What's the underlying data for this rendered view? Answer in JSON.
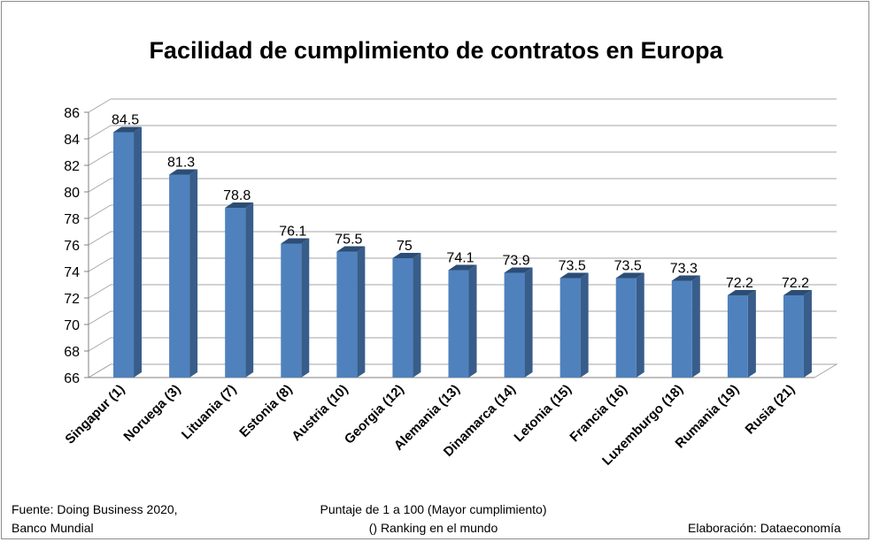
{
  "chart_data": {
    "type": "bar",
    "title": "Facilidad de cumplimiento de contratos en Europa",
    "categories": [
      "Singapur (1)",
      "Noruega (3)",
      "Lituania (7)",
      "Estonia (8)",
      "Austria (10)",
      "Georgia (12)",
      "Alemania (13)",
      "Dinamarca (14)",
      "Letonia (15)",
      "Francia (16)",
      "Luxemburgo (18)",
      "Rumania (19)",
      "Rusia (21)"
    ],
    "values": [
      84.5,
      81.3,
      78.8,
      76.1,
      75.5,
      75,
      74.1,
      73.9,
      73.5,
      73.5,
      73.3,
      72.2,
      72.2
    ],
    "value_labels": [
      "84.5",
      "81.3",
      "78.8",
      "76.1",
      "75.5",
      "75",
      "74.1",
      "73.9",
      "73.5",
      "73.5",
      "73.3",
      "72.2",
      "72.2"
    ],
    "ylim": [
      66,
      86
    ],
    "yticks": [
      "66",
      "68",
      "70",
      "72",
      "74",
      "76",
      "78",
      "80",
      "82",
      "84",
      "86"
    ],
    "grid": true,
    "bar_color": "#4f81bd",
    "bar_side_color": "#385d8a",
    "bar_top_color": "#2c4d75"
  },
  "footer": {
    "source_line1": "Fuente: Doing Business 2020,",
    "source_line2": "Banco Mundial",
    "scale_line1": "Puntaje de 1 a 100 (Mayor cumplimiento)",
    "scale_line2": "() Ranking en el mundo",
    "credit": "Elaboración: Dataeconomía"
  }
}
